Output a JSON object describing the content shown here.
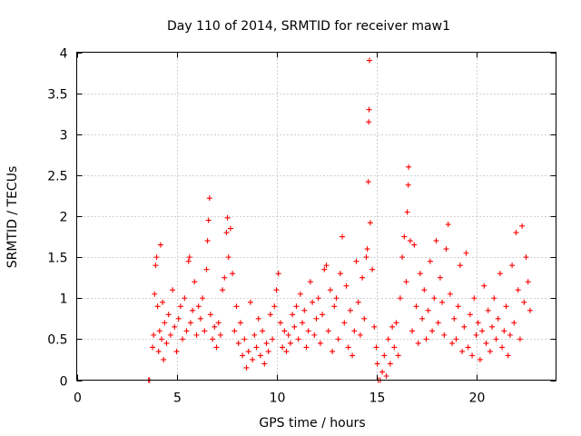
{
  "chart_data": {
    "type": "scatter",
    "title": "Day 110 of 2014, SRMTID for receiver maw1",
    "xlabel": "GPS time / hours",
    "ylabel": "SRMTID / TECUs",
    "xlim": [
      0,
      24
    ],
    "ylim": [
      0,
      4
    ],
    "xticks": [
      0,
      5,
      10,
      15,
      20
    ],
    "xtick_labels": [
      "0",
      "5",
      "10",
      "15",
      "20"
    ],
    "yticks": [
      0,
      0.5,
      1,
      1.5,
      2,
      2.5,
      3,
      3.5,
      4
    ],
    "ytick_labels": [
      "0",
      "0.5",
      "1",
      "1.5",
      "2",
      "2.5",
      "3",
      "3.5",
      "4"
    ],
    "grid": true,
    "marker": "+",
    "color": "#ff0000",
    "series": [
      {
        "name": "SRMTID",
        "points": [
          [
            3.6,
            0.0
          ],
          [
            3.65,
            0.0
          ],
          [
            3.8,
            0.4
          ],
          [
            3.85,
            0.55
          ],
          [
            3.9,
            1.05
          ],
          [
            3.95,
            1.4
          ],
          [
            4.0,
            1.5
          ],
          [
            4.05,
            0.9
          ],
          [
            4.1,
            0.35
          ],
          [
            4.15,
            0.6
          ],
          [
            4.2,
            1.65
          ],
          [
            4.25,
            0.5
          ],
          [
            4.3,
            0.95
          ],
          [
            4.35,
            0.25
          ],
          [
            4.4,
            0.7
          ],
          [
            4.5,
            0.45
          ],
          [
            4.6,
            0.8
          ],
          [
            4.7,
            0.55
          ],
          [
            4.8,
            1.1
          ],
          [
            4.9,
            0.65
          ],
          [
            5.0,
            0.35
          ],
          [
            5.1,
            0.75
          ],
          [
            5.2,
            0.9
          ],
          [
            5.3,
            0.5
          ],
          [
            5.4,
            1.0
          ],
          [
            5.5,
            0.6
          ],
          [
            5.6,
            1.45
          ],
          [
            5.65,
            1.5
          ],
          [
            5.7,
            0.7
          ],
          [
            5.8,
            0.85
          ],
          [
            5.9,
            1.2
          ],
          [
            6.0,
            0.55
          ],
          [
            6.1,
            0.9
          ],
          [
            6.2,
            0.75
          ],
          [
            6.3,
            1.0
          ],
          [
            6.4,
            0.6
          ],
          [
            6.5,
            1.35
          ],
          [
            6.55,
            1.7
          ],
          [
            6.6,
            1.95
          ],
          [
            6.65,
            2.22
          ],
          [
            6.7,
            0.8
          ],
          [
            6.8,
            0.5
          ],
          [
            6.9,
            0.65
          ],
          [
            7.0,
            0.4
          ],
          [
            7.1,
            0.7
          ],
          [
            7.2,
            0.55
          ],
          [
            7.3,
            1.1
          ],
          [
            7.4,
            1.25
          ],
          [
            7.5,
            1.8
          ],
          [
            7.55,
            1.98
          ],
          [
            7.6,
            1.5
          ],
          [
            7.7,
            1.85
          ],
          [
            7.8,
            1.3
          ],
          [
            7.9,
            0.6
          ],
          [
            8.0,
            0.9
          ],
          [
            8.1,
            0.45
          ],
          [
            8.2,
            0.7
          ],
          [
            8.3,
            0.3
          ],
          [
            8.4,
            0.5
          ],
          [
            8.5,
            0.15
          ],
          [
            8.6,
            0.35
          ],
          [
            8.7,
            0.95
          ],
          [
            8.8,
            0.25
          ],
          [
            8.9,
            0.55
          ],
          [
            9.0,
            0.4
          ],
          [
            9.1,
            0.75
          ],
          [
            9.2,
            0.3
          ],
          [
            9.3,
            0.6
          ],
          [
            9.4,
            0.2
          ],
          [
            9.5,
            0.45
          ],
          [
            9.6,
            0.35
          ],
          [
            9.7,
            0.8
          ],
          [
            9.8,
            0.5
          ],
          [
            9.9,
            0.9
          ],
          [
            10.0,
            1.1
          ],
          [
            10.1,
            1.3
          ],
          [
            10.2,
            0.7
          ],
          [
            10.3,
            0.4
          ],
          [
            10.4,
            0.6
          ],
          [
            10.5,
            0.35
          ],
          [
            10.6,
            0.55
          ],
          [
            10.7,
            0.45
          ],
          [
            10.8,
            0.8
          ],
          [
            10.9,
            0.65
          ],
          [
            11.0,
            0.9
          ],
          [
            11.1,
            0.5
          ],
          [
            11.2,
            1.05
          ],
          [
            11.3,
            0.7
          ],
          [
            11.4,
            0.85
          ],
          [
            11.5,
            0.4
          ],
          [
            11.6,
            0.6
          ],
          [
            11.7,
            1.2
          ],
          [
            11.8,
            0.95
          ],
          [
            11.9,
            0.55
          ],
          [
            12.0,
            0.75
          ],
          [
            12.1,
            1.0
          ],
          [
            12.2,
            0.45
          ],
          [
            12.3,
            0.8
          ],
          [
            12.4,
            1.35
          ],
          [
            12.5,
            1.4
          ],
          [
            12.6,
            0.6
          ],
          [
            12.7,
            1.1
          ],
          [
            12.8,
            0.35
          ],
          [
            12.9,
            0.9
          ],
          [
            13.0,
            1.0
          ],
          [
            13.1,
            0.5
          ],
          [
            13.2,
            1.3
          ],
          [
            13.3,
            1.75
          ],
          [
            13.4,
            0.7
          ],
          [
            13.5,
            1.15
          ],
          [
            13.6,
            0.4
          ],
          [
            13.7,
            0.85
          ],
          [
            13.8,
            0.3
          ],
          [
            13.9,
            0.6
          ],
          [
            14.0,
            1.45
          ],
          [
            14.1,
            0.95
          ],
          [
            14.2,
            0.55
          ],
          [
            14.3,
            1.25
          ],
          [
            14.4,
            0.75
          ],
          [
            14.5,
            1.5
          ],
          [
            14.55,
            1.6
          ],
          [
            14.6,
            2.42
          ],
          [
            14.62,
            3.15
          ],
          [
            14.64,
            3.3
          ],
          [
            14.66,
            3.9
          ],
          [
            14.7,
            1.92
          ],
          [
            14.8,
            1.35
          ],
          [
            14.9,
            0.65
          ],
          [
            15.0,
            0.4
          ],
          [
            15.05,
            0.2
          ],
          [
            15.1,
            0.0
          ],
          [
            15.2,
            0.0
          ],
          [
            15.3,
            0.1
          ],
          [
            15.4,
            0.3
          ],
          [
            15.5,
            0.05
          ],
          [
            15.6,
            0.5
          ],
          [
            15.7,
            0.2
          ],
          [
            15.8,
            0.65
          ],
          [
            15.9,
            0.4
          ],
          [
            16.0,
            0.7
          ],
          [
            16.1,
            0.3
          ],
          [
            16.2,
            1.0
          ],
          [
            16.3,
            1.5
          ],
          [
            16.4,
            1.75
          ],
          [
            16.5,
            1.2
          ],
          [
            16.55,
            2.05
          ],
          [
            16.6,
            2.38
          ],
          [
            16.62,
            2.6
          ],
          [
            16.7,
            1.7
          ],
          [
            16.8,
            0.6
          ],
          [
            16.9,
            1.65
          ],
          [
            17.0,
            0.9
          ],
          [
            17.1,
            0.45
          ],
          [
            17.2,
            1.3
          ],
          [
            17.3,
            0.75
          ],
          [
            17.4,
            1.1
          ],
          [
            17.5,
            0.5
          ],
          [
            17.6,
            0.85
          ],
          [
            17.7,
            1.45
          ],
          [
            17.8,
            0.6
          ],
          [
            17.9,
            1.0
          ],
          [
            18.0,
            1.7
          ],
          [
            18.1,
            0.7
          ],
          [
            18.2,
            1.25
          ],
          [
            18.3,
            0.95
          ],
          [
            18.4,
            0.55
          ],
          [
            18.5,
            1.6
          ],
          [
            18.6,
            1.9
          ],
          [
            18.7,
            1.05
          ],
          [
            18.8,
            0.45
          ],
          [
            18.9,
            0.75
          ],
          [
            19.0,
            0.5
          ],
          [
            19.1,
            0.9
          ],
          [
            19.2,
            1.4
          ],
          [
            19.3,
            0.35
          ],
          [
            19.4,
            0.65
          ],
          [
            19.5,
            1.55
          ],
          [
            19.6,
            0.4
          ],
          [
            19.7,
            0.8
          ],
          [
            19.8,
            0.3
          ],
          [
            19.9,
            1.0
          ],
          [
            20.0,
            0.55
          ],
          [
            20.1,
            0.7
          ],
          [
            20.2,
            0.25
          ],
          [
            20.3,
            0.6
          ],
          [
            20.4,
            1.15
          ],
          [
            20.5,
            0.45
          ],
          [
            20.6,
            0.85
          ],
          [
            20.7,
            0.35
          ],
          [
            20.8,
            0.65
          ],
          [
            20.9,
            1.0
          ],
          [
            21.0,
            0.5
          ],
          [
            21.1,
            0.75
          ],
          [
            21.2,
            1.3
          ],
          [
            21.3,
            0.4
          ],
          [
            21.4,
            0.6
          ],
          [
            21.5,
            0.9
          ],
          [
            21.6,
            0.3
          ],
          [
            21.7,
            0.55
          ],
          [
            21.8,
            1.4
          ],
          [
            21.9,
            0.7
          ],
          [
            22.0,
            1.8
          ],
          [
            22.1,
            1.1
          ],
          [
            22.2,
            0.5
          ],
          [
            22.3,
            1.88
          ],
          [
            22.4,
            0.95
          ],
          [
            22.5,
            1.5
          ],
          [
            22.6,
            1.2
          ],
          [
            22.7,
            0.85
          ]
        ]
      }
    ]
  }
}
